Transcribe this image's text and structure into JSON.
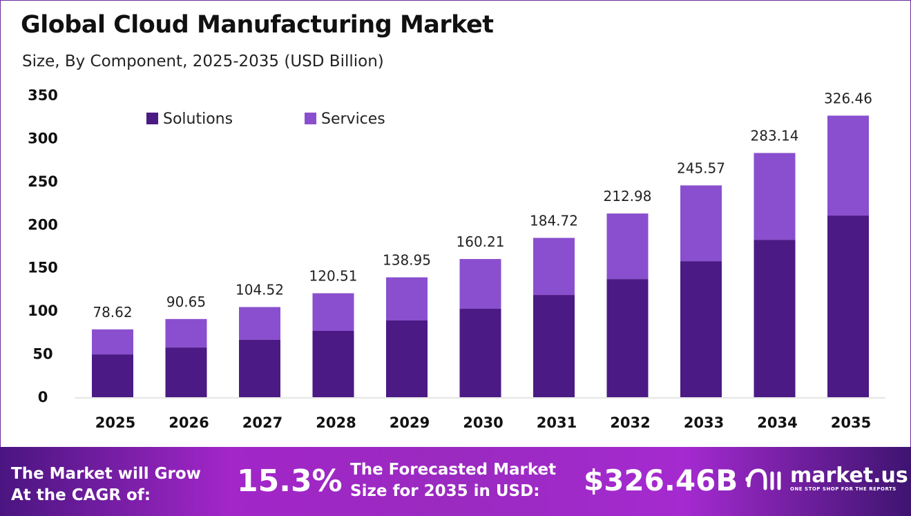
{
  "chart_data": {
    "type": "stacked-bar",
    "title": "Global Cloud Manufacturing Market",
    "subtitle": "Size, By Component, 2025-2035 (USD Billion)",
    "categories": [
      "2025",
      "2026",
      "2027",
      "2028",
      "2029",
      "2030",
      "2031",
      "2032",
      "2033",
      "2034",
      "2035"
    ],
    "series": [
      {
        "name": "Solutions",
        "color": "#4b1a84",
        "values": [
          49.6,
          57.6,
          66.5,
          76.9,
          88.9,
          102.5,
          118.5,
          136.9,
          157.7,
          182.5,
          210.6
        ]
      },
      {
        "name": "Services",
        "color": "#8a4fce",
        "values": [
          29.02,
          33.05,
          38.02,
          43.61,
          50.05,
          57.71,
          66.22,
          76.08,
          87.87,
          100.64,
          115.86
        ]
      }
    ],
    "totals": [
      "78.62",
      "90.65",
      "104.52",
      "120.51",
      "138.95",
      "160.21",
      "184.72",
      "212.98",
      "245.57",
      "283.14",
      "326.46"
    ],
    "ylim": [
      0,
      350
    ],
    "yticks": [
      "0",
      "50",
      "100",
      "150",
      "200",
      "250",
      "300",
      "350"
    ],
    "grid": false,
    "legend": "top-left"
  },
  "footer": {
    "cagr_label_1": "The Market will Grow",
    "cagr_label_2": "At the CAGR of:",
    "cagr_value": "15.3%",
    "forecast_label_1": "The Forecasted Market",
    "forecast_label_2": "Size for 2035 in USD:",
    "forecast_value": "$326.46B",
    "logo_text": "market.us",
    "logo_tagline": "ONE STOP SHOP FOR THE REPORTS"
  }
}
